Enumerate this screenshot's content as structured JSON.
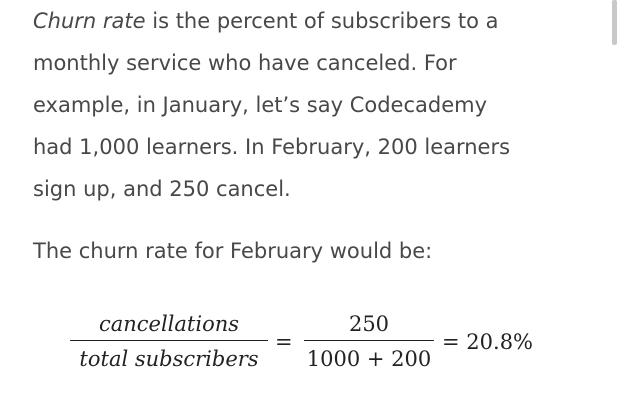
{
  "paragraph1": {
    "term": "Churn rate",
    "line1_rest": " is the percent of subscribers to a",
    "line2": "monthly service who have canceled. For",
    "line3": "example, in January, let’s say Codecademy",
    "line4": "had 1,000 learners. In February, 200 learners",
    "line5": "sign up, and 250 cancel."
  },
  "paragraph2": "The churn rate for February would be:",
  "formula": {
    "frac1_numerator": "cancellations",
    "frac1_denominator": "total subscribers",
    "equals": "=",
    "frac2_numerator": "250",
    "frac2_denominator": "1000 + 200",
    "result": "20.8%"
  }
}
